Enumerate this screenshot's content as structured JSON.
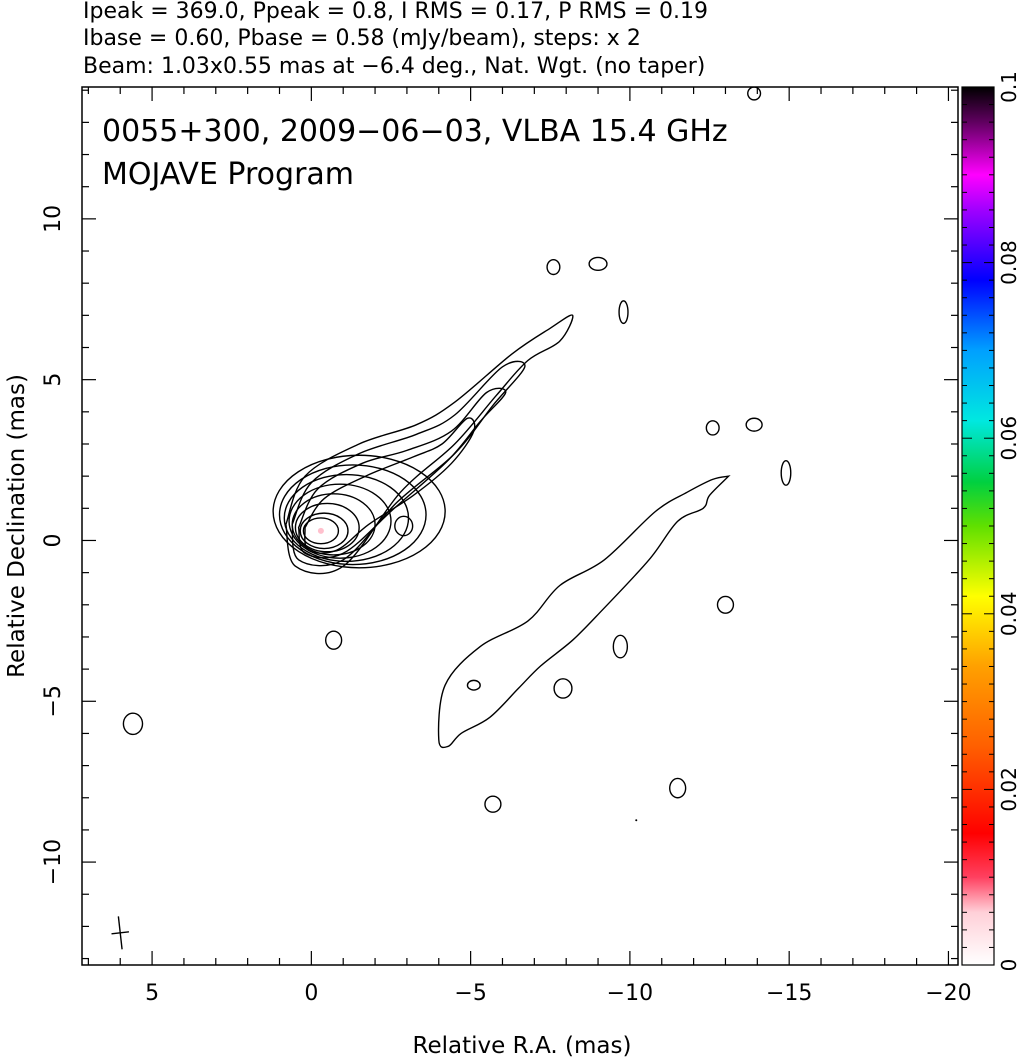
{
  "header": {
    "line1": "Ipeak = 369.0, Ppeak = 0.8, I RMS = 0.17, P RMS = 0.19",
    "line2": "Ibase = 0.60, Pbase = 0.58 (mJy/beam), steps: x 2",
    "line3": "Beam: 1.03x0.55 mas at −6.4 deg., Nat. Wgt. (no taper)"
  },
  "chart_data": {
    "type": "contour",
    "title": "0055+300, 2009−06−03, VLBA 15.4 GHz",
    "subtitle": "MOJAVE Program",
    "xlabel": "Relative R.A. (mas)",
    "ylabel": "Relative Declination (mas)",
    "xlim": [
      7.2,
      -20.3
    ],
    "ylim": [
      -13.2,
      14.1
    ],
    "x_ticks": [
      5,
      0,
      -5,
      -10,
      -15,
      -20
    ],
    "x_tick_labels": [
      "5",
      "0",
      "−5",
      "−10",
      "−15",
      "−20"
    ],
    "y_ticks": [
      -10,
      -5,
      0,
      5,
      10
    ],
    "y_tick_labels": [
      "−10",
      "−5",
      "0",
      "5",
      "10"
    ],
    "colorbar": {
      "ticks": [
        0,
        0.02,
        0.04,
        0.06,
        0.08,
        0.1
      ],
      "tick_labels": [
        "0",
        "0.02",
        "0.04",
        "0.06",
        "0.08",
        "0.1"
      ]
    },
    "beam": {
      "major_mas": 1.03,
      "minor_mas": 0.55,
      "pa_deg": -6.4
    },
    "contour_base_mJy_per_beam": 0.6,
    "contour_step_factor": 2,
    "core_position": [
      -0.3,
      0.3
    ],
    "core_contours": [
      {
        "center": [
          -0.3,
          0.3
        ],
        "rx": 0.55,
        "ry": 0.4
      },
      {
        "center": [
          -0.4,
          0.3
        ],
        "rx": 0.75,
        "ry": 0.55
      },
      {
        "center": [
          -0.5,
          0.4
        ],
        "rx": 1.0,
        "ry": 0.75
      },
      {
        "center": [
          -0.7,
          0.5
        ],
        "rx": 1.3,
        "ry": 0.95
      },
      {
        "center": [
          -0.9,
          0.6
        ],
        "rx": 1.6,
        "ry": 1.15
      },
      {
        "center": [
          -1.1,
          0.7
        ],
        "rx": 1.95,
        "ry": 1.35
      },
      {
        "center": [
          -1.3,
          0.8
        ],
        "rx": 2.3,
        "ry": 1.55
      },
      {
        "center": [
          -1.5,
          0.9
        ],
        "rx": 2.7,
        "ry": 1.75
      }
    ],
    "inner_jet_contours": [
      [
        [
          0.8,
          0.5
        ],
        [
          0.2,
          2.0
        ],
        [
          -1.5,
          3.0
        ],
        [
          -3.3,
          3.6
        ],
        [
          -4.5,
          4.3
        ],
        [
          -6.3,
          5.8
        ],
        [
          -7.5,
          6.6
        ],
        [
          -8.2,
          7.0
        ],
        [
          -7.8,
          6.2
        ],
        [
          -6.8,
          5.6
        ],
        [
          -5.8,
          4.5
        ],
        [
          -4.5,
          3.0
        ],
        [
          -2.8,
          1.5
        ],
        [
          -1.0,
          -0.8
        ],
        [
          0.5,
          -0.8
        ],
        [
          0.8,
          0.5
        ]
      ],
      [
        [
          0.6,
          0.5
        ],
        [
          0.0,
          1.8
        ],
        [
          -1.5,
          2.7
        ],
        [
          -3.3,
          3.3
        ],
        [
          -4.5,
          3.9
        ],
        [
          -6.0,
          5.4
        ],
        [
          -6.7,
          5.4
        ],
        [
          -5.7,
          4.2
        ],
        [
          -4.5,
          2.7
        ],
        [
          -2.7,
          1.2
        ],
        [
          -1.0,
          -0.6
        ],
        [
          0.4,
          -0.6
        ],
        [
          0.6,
          0.5
        ]
      ],
      [
        [
          0.4,
          0.4
        ],
        [
          -0.2,
          1.6
        ],
        [
          -1.6,
          2.4
        ],
        [
          -3.0,
          2.8
        ],
        [
          -4.4,
          3.4
        ],
        [
          -5.5,
          4.6
        ],
        [
          -6.1,
          4.6
        ],
        [
          -5.3,
          3.7
        ],
        [
          -4.3,
          2.5
        ],
        [
          -2.6,
          1.0
        ],
        [
          -1.0,
          -0.4
        ],
        [
          0.2,
          -0.4
        ],
        [
          0.4,
          0.4
        ]
      ],
      [
        [
          0.2,
          0.4
        ],
        [
          -0.4,
          1.3
        ],
        [
          -1.7,
          2.0
        ],
        [
          -3.2,
          2.6
        ],
        [
          -4.1,
          3.0
        ],
        [
          -4.9,
          3.8
        ],
        [
          -5.1,
          3.4
        ],
        [
          -4.4,
          2.4
        ],
        [
          -3.2,
          1.4
        ],
        [
          -1.8,
          0.5
        ],
        [
          -0.8,
          -0.3
        ],
        [
          0.1,
          -0.3
        ],
        [
          0.2,
          0.4
        ]
      ]
    ],
    "outer_jet_contour": [
      [
        -13.1,
        2.0
      ],
      [
        -12.5,
        1.4
      ],
      [
        -12.3,
        1.0
      ],
      [
        -11.5,
        0.6
      ],
      [
        -10.6,
        -0.6
      ],
      [
        -9.1,
        -2.2
      ],
      [
        -8.2,
        -3.1
      ],
      [
        -7.2,
        -3.9
      ],
      [
        -6.5,
        -4.6
      ],
      [
        -5.6,
        -5.5
      ],
      [
        -4.7,
        -6.0
      ],
      [
        -4.3,
        -6.4
      ],
      [
        -4.0,
        -6.2
      ],
      [
        -4.2,
        -4.5
      ],
      [
        -5.3,
        -3.3
      ],
      [
        -6.8,
        -2.5
      ],
      [
        -7.8,
        -1.4
      ],
      [
        -9.2,
        -0.6
      ],
      [
        -10.8,
        0.9
      ],
      [
        -11.8,
        1.5
      ],
      [
        -12.6,
        1.9
      ],
      [
        -13.1,
        2.0
      ]
    ],
    "noise_contours": [
      {
        "center": [
          -2.9,
          0.45
        ],
        "rx": 0.28,
        "ry": 0.3
      },
      {
        "center": [
          -0.7,
          -3.1
        ],
        "rx": 0.25,
        "ry": 0.28
      },
      {
        "center": [
          -7.6,
          8.5
        ],
        "rx": 0.2,
        "ry": 0.23
      },
      {
        "center": [
          -9.0,
          8.6
        ],
        "rx": 0.28,
        "ry": 0.2
      },
      {
        "center": [
          -9.8,
          7.1
        ],
        "rx": 0.14,
        "ry": 0.35
      },
      {
        "center": [
          -12.6,
          3.5
        ],
        "rx": 0.2,
        "ry": 0.22
      },
      {
        "center": [
          -13.9,
          3.6
        ],
        "rx": 0.25,
        "ry": 0.2
      },
      {
        "center": [
          -14.9,
          2.1
        ],
        "rx": 0.15,
        "ry": 0.38
      },
      {
        "center": [
          -13.0,
          -2.0
        ],
        "rx": 0.25,
        "ry": 0.26
      },
      {
        "center": [
          -9.7,
          -3.3
        ],
        "rx": 0.22,
        "ry": 0.35
      },
      {
        "center": [
          -7.9,
          -4.6
        ],
        "rx": 0.28,
        "ry": 0.3
      },
      {
        "center": [
          -5.1,
          -4.5
        ],
        "rx": 0.2,
        "ry": 0.15
      },
      {
        "center": [
          -5.7,
          -8.2
        ],
        "rx": 0.25,
        "ry": 0.25
      },
      {
        "center": [
          -11.5,
          -7.7
        ],
        "rx": 0.25,
        "ry": 0.3
      },
      {
        "center": [
          5.6,
          -5.7
        ],
        "rx": 0.3,
        "ry": 0.33
      },
      {
        "center": [
          -13.9,
          13.9
        ],
        "rx": 0.2,
        "ry": 0.2
      }
    ],
    "dot_markers": [
      [
        -10.2,
        -8.7
      ]
    ],
    "grid": false,
    "colormap_legend": "right"
  }
}
